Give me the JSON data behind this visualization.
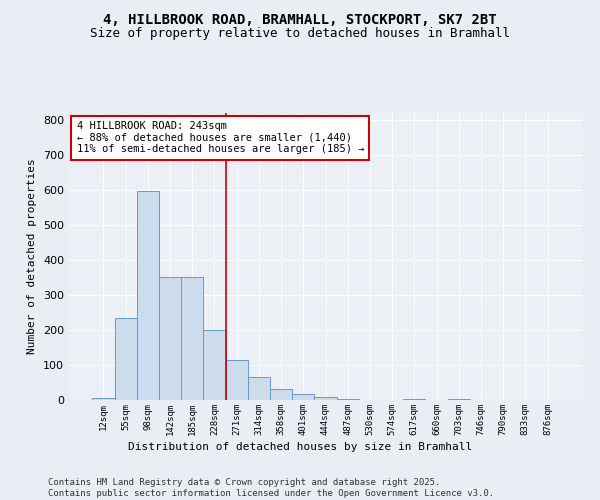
{
  "title1": "4, HILLBROOK ROAD, BRAMHALL, STOCKPORT, SK7 2BT",
  "title2": "Size of property relative to detached houses in Bramhall",
  "xlabel": "Distribution of detached houses by size in Bramhall",
  "ylabel": "Number of detached properties",
  "bin_labels": [
    "12sqm",
    "55sqm",
    "98sqm",
    "142sqm",
    "185sqm",
    "228sqm",
    "271sqm",
    "314sqm",
    "358sqm",
    "401sqm",
    "444sqm",
    "487sqm",
    "530sqm",
    "574sqm",
    "617sqm",
    "660sqm",
    "703sqm",
    "746sqm",
    "790sqm",
    "833sqm",
    "876sqm"
  ],
  "bar_values": [
    5,
    235,
    595,
    350,
    350,
    200,
    115,
    65,
    30,
    18,
    8,
    2,
    0,
    0,
    2,
    0,
    2,
    0,
    0,
    0,
    0
  ],
  "bar_color": "#ccdcec",
  "bar_edge_color": "#6699cc",
  "vline_x": 5.5,
  "vline_color": "#cc0000",
  "annotation_text": "4 HILLBROOK ROAD: 243sqm\n← 88% of detached houses are smaller (1,440)\n11% of semi-detached houses are larger (185) →",
  "annotation_box_color": "#ffffff",
  "annotation_box_edge": "#cc0000",
  "ylim": [
    0,
    820
  ],
  "yticks": [
    0,
    100,
    200,
    300,
    400,
    500,
    600,
    700,
    800
  ],
  "background_color": "#e8eef4",
  "plot_bg_color": "#eaf0f6",
  "footer": "Contains HM Land Registry data © Crown copyright and database right 2025.\nContains public sector information licensed under the Open Government Licence v3.0.",
  "title_fontsize": 10,
  "subtitle_fontsize": 9,
  "annotation_fontsize": 7.5,
  "footer_fontsize": 6.5,
  "ylabel_fontsize": 8,
  "xlabel_fontsize": 8
}
